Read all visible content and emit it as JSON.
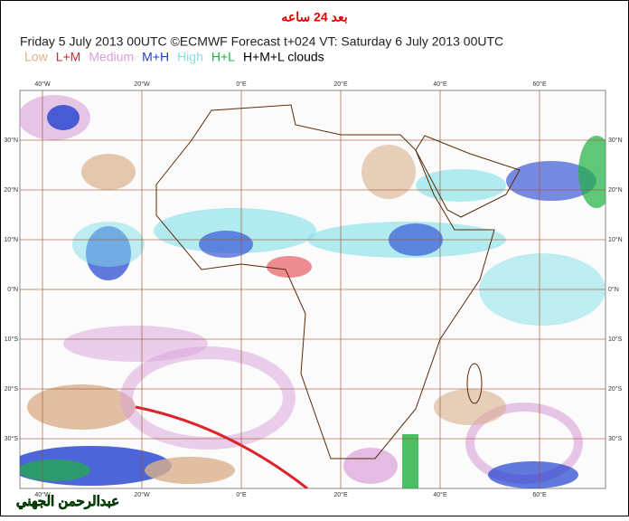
{
  "header": {
    "title_ar": "بعد 24 ساعه",
    "forecast": "Friday 5 July 2013 00UTC ©ECMWF Forecast t+024 VT: Saturday 6 July 2013 00UTC"
  },
  "legend": [
    {
      "label": "Low",
      "color": "#d9b08c"
    },
    {
      "label": "L+M",
      "color": "#e0202a"
    },
    {
      "label": "Medium",
      "color": "#d9a0d9"
    },
    {
      "label": "M+H",
      "color": "#2040d0"
    },
    {
      "label": "High",
      "color": "#80e0e8"
    },
    {
      "label": "H+L",
      "color": "#20b040"
    },
    {
      "label": "H+M+L clouds",
      "color": "#000000"
    }
  ],
  "map": {
    "lon_labels": [
      "40°W",
      "20°W",
      "0°E",
      "20°E",
      "40°E",
      "60°E"
    ],
    "lat_labels_left": [
      "30°N",
      "20°N",
      "10°N",
      "0°N",
      "10°S",
      "20°S",
      "30°S"
    ],
    "lat_labels_right": [
      "30°N",
      "20°N",
      "10°N",
      "0°N",
      "10°S",
      "20°S",
      "30°S"
    ]
  },
  "watermark": "عبدالرحمن الجهني"
}
